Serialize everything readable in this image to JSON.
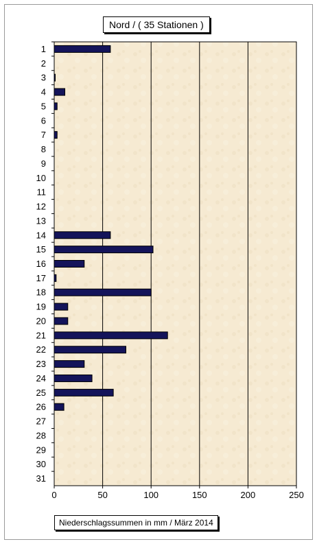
{
  "chart_data": {
    "type": "bar",
    "orientation": "horizontal",
    "title": "Nord  /  ( 35 Stationen )",
    "xlabel": "Niederschlagssummen in mm / März 2014",
    "categories": [
      "1",
      "2",
      "3",
      "4",
      "5",
      "6",
      "7",
      "8",
      "9",
      "10",
      "11",
      "12",
      "13",
      "14",
      "15",
      "16",
      "17",
      "18",
      "19",
      "20",
      "21",
      "22",
      "23",
      "24",
      "25",
      "26",
      "27",
      "28",
      "29",
      "30",
      "31"
    ],
    "values": [
      58,
      0,
      1,
      11,
      3,
      0,
      3,
      0,
      0,
      0,
      0,
      0,
      0,
      58,
      102,
      31,
      2,
      100,
      14,
      14,
      117,
      74,
      31,
      39,
      61,
      10,
      0,
      0,
      0,
      0,
      0
    ],
    "xlim": [
      0,
      250
    ],
    "xticks": [
      0,
      50,
      100,
      150,
      200,
      250
    ],
    "grid": "vertical",
    "colors": {
      "bar": "#14145a",
      "bar_edge": "#000000",
      "plot_background": "#f6ead2",
      "gridline": "#000000"
    }
  }
}
